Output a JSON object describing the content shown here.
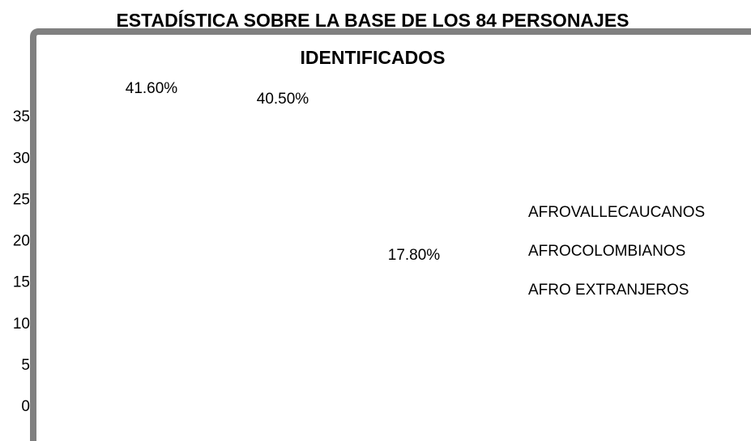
{
  "chart_data": {
    "type": "bar",
    "title": "ESTADÍSTICA SOBRE LA BASE DE LOS 84 PERSONAJES IDENTIFICADOS",
    "series": [
      {
        "name": "AFROVALLECAUCANOS",
        "values": [
          41.6
        ],
        "value_labels": [
          "41.60%"
        ]
      },
      {
        "name": "AFROCOLOMBIANOS",
        "values": [
          40.5
        ],
        "value_labels": [
          "40.50%"
        ]
      },
      {
        "name": "AFRO EXTRANJEROS",
        "values": [
          17.8
        ],
        "value_labels": [
          "17.80%"
        ]
      }
    ],
    "ylim": [
      0,
      40
    ],
    "yticks": [
      0,
      5,
      10,
      15,
      20,
      25,
      30,
      35
    ]
  }
}
